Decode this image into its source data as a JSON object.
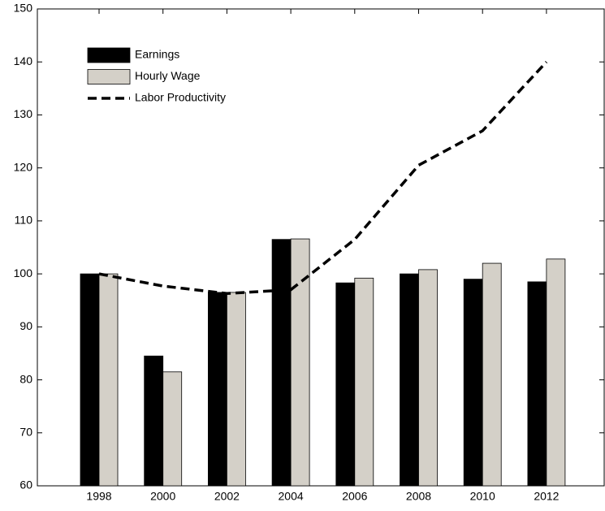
{
  "chart_data": {
    "type": "bar",
    "categories": [
      "1998",
      "2000",
      "2002",
      "2004",
      "2006",
      "2008",
      "2010",
      "2012"
    ],
    "series": [
      {
        "name": "Earnings",
        "color": "#000000",
        "values": [
          100,
          84.5,
          96.5,
          106.5,
          98.3,
          100,
          99,
          98.5
        ]
      },
      {
        "name": "Hourly Wage",
        "color": "#d4d0c8",
        "values": [
          100,
          81.5,
          96.5,
          106.6,
          99.2,
          100.8,
          102,
          102.8
        ]
      },
      {
        "name": "Labor Productivity",
        "type": "line",
        "dashed": true,
        "color": "#000000",
        "values": [
          100,
          97.7,
          96.3,
          97,
          106.5,
          120.5,
          127,
          140
        ]
      }
    ],
    "ylim": [
      60,
      150
    ],
    "yticks": [
      60,
      70,
      80,
      90,
      100,
      110,
      120,
      130,
      140,
      150
    ],
    "legend": "upper-left",
    "grid": false
  }
}
